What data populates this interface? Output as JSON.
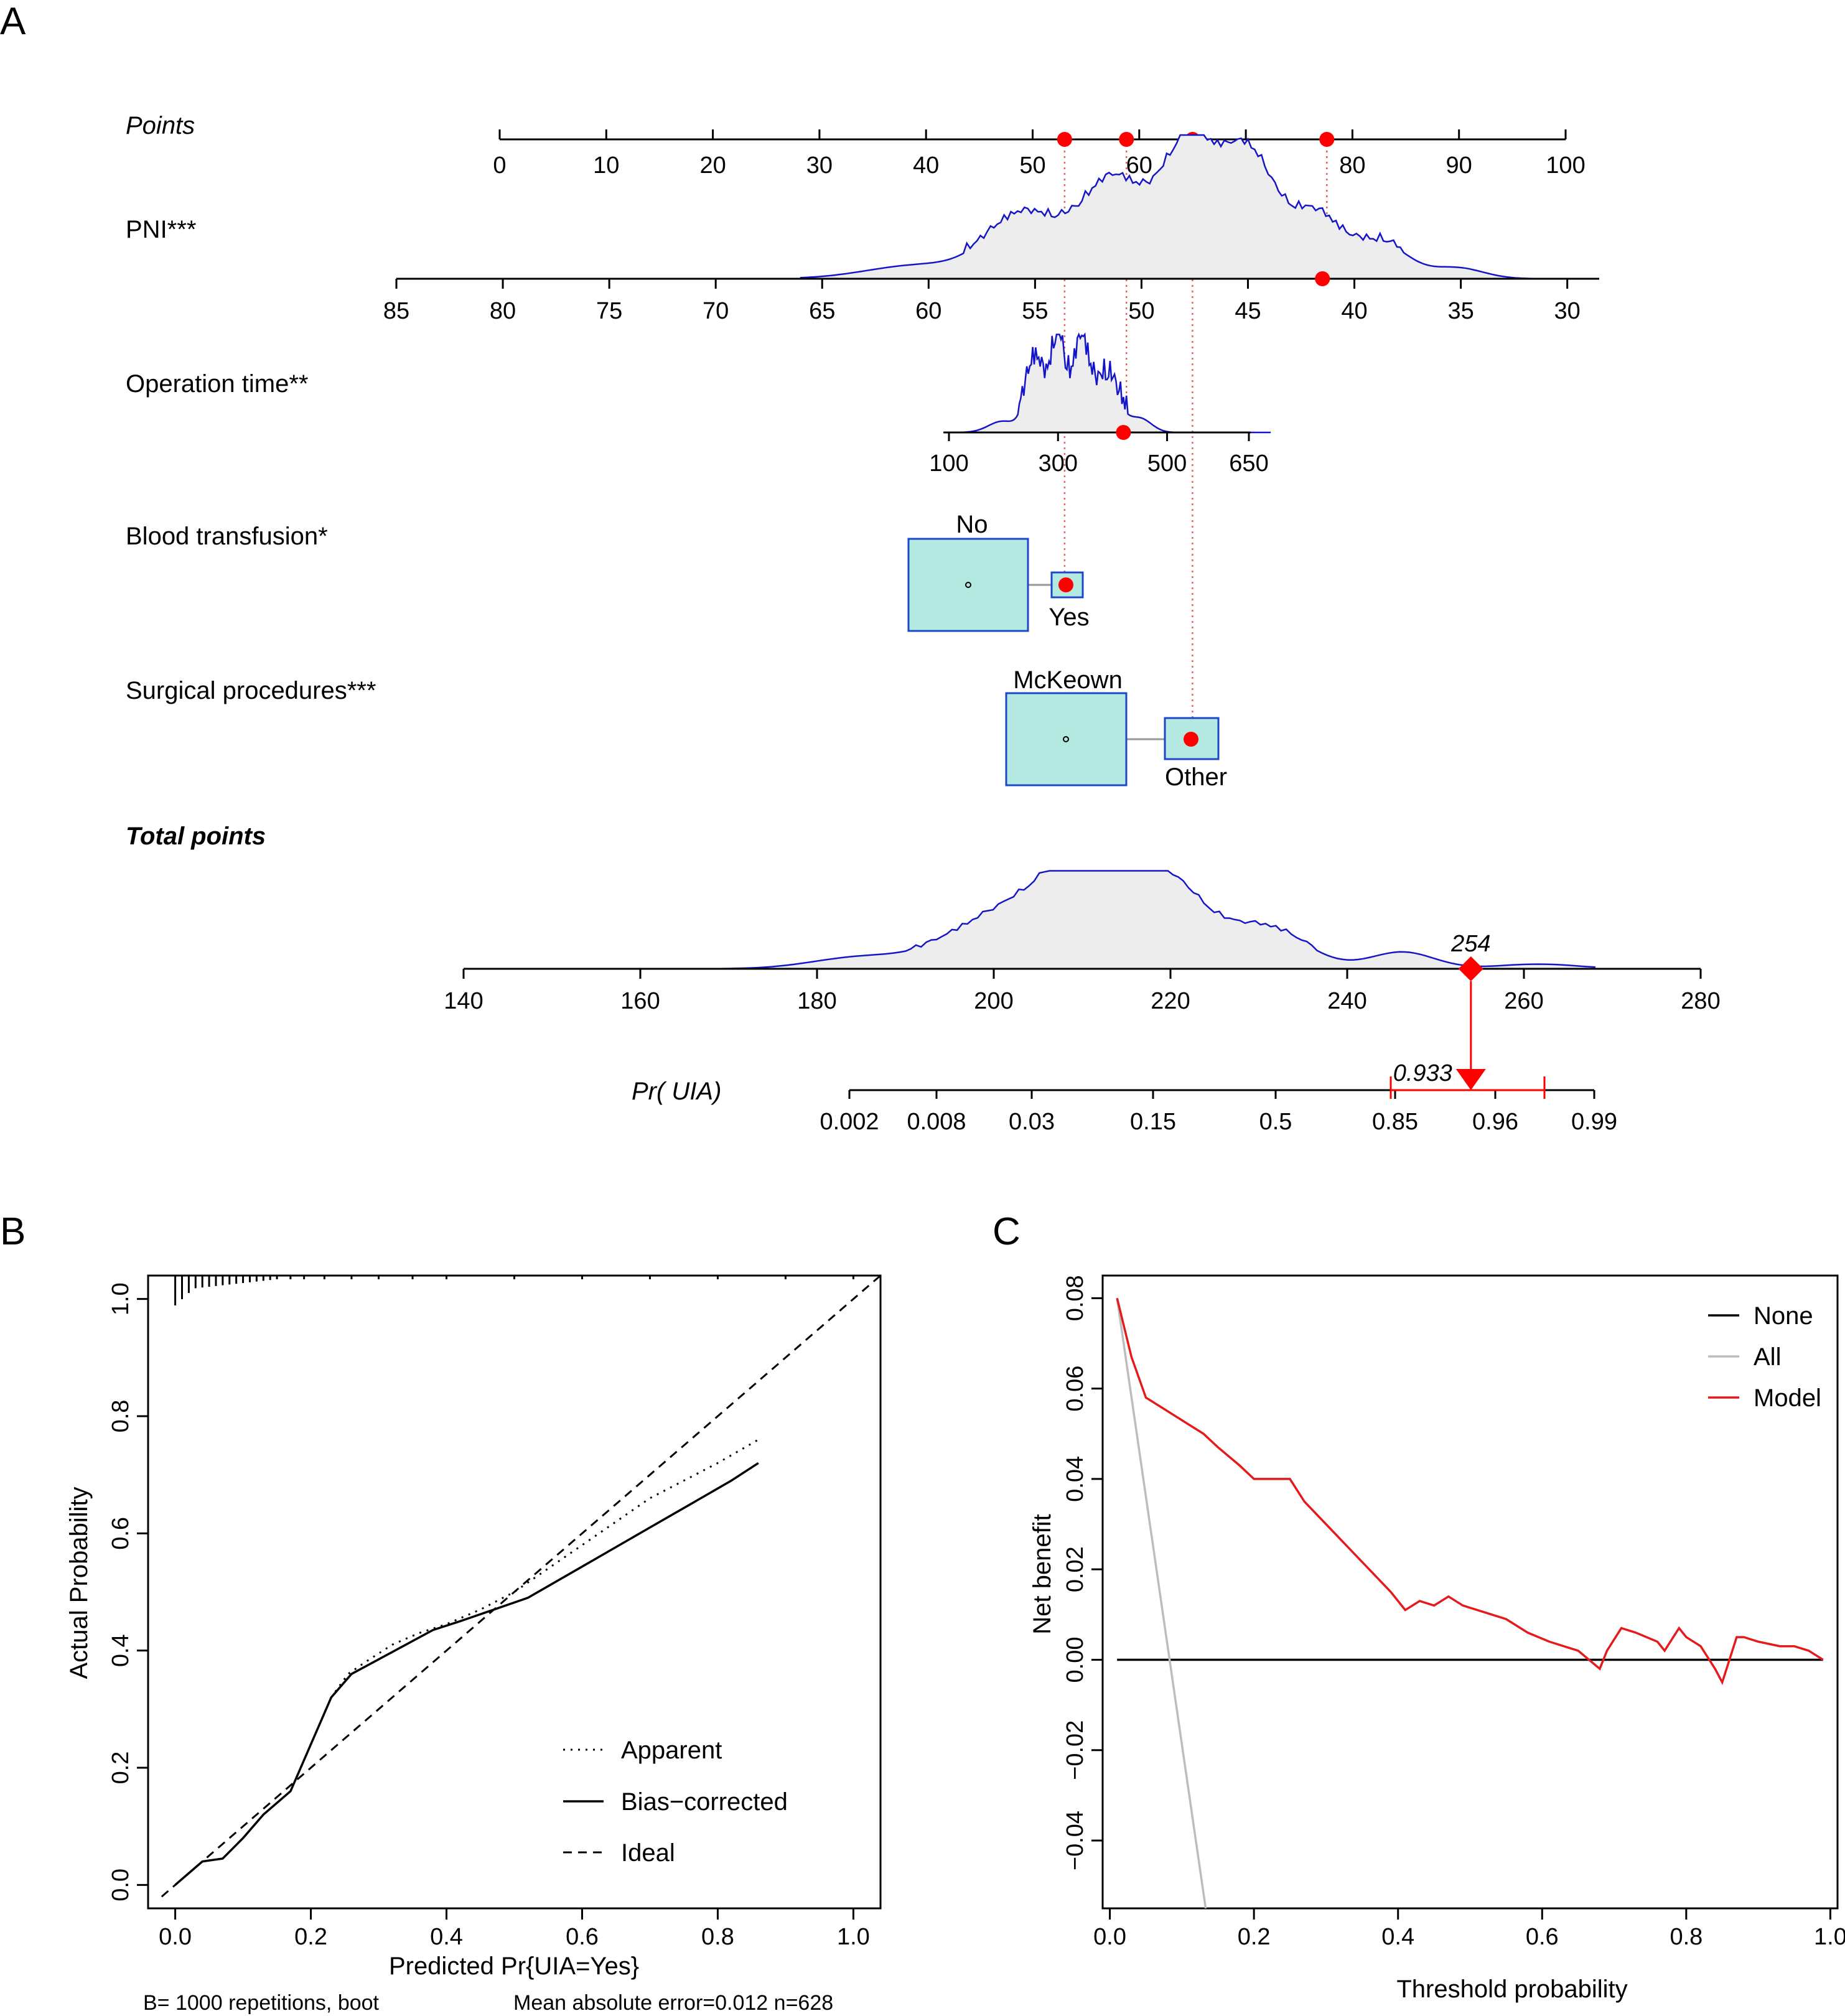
{
  "figure_labels": {
    "a": "A",
    "b": "B",
    "c": "C"
  },
  "colors": {
    "density_line": "#1414c8",
    "density_fill": "#ededed",
    "marker": "#ff0000",
    "box_fill": "#b3e9e1",
    "box_border": "#1c47c9",
    "all_line": "#bdbdbd",
    "model_line": "#e41a1c"
  },
  "chart_data": [
    {
      "type": "nomogram",
      "panel": "A",
      "scales": {
        "points": {
          "label": "Points",
          "ticks": [
            0,
            10,
            20,
            30,
            40,
            50,
            60,
            70,
            80,
            90,
            100
          ],
          "range": [
            0,
            100
          ],
          "markers": [
            53,
            58.8,
            65,
            77.6
          ]
        },
        "pni": {
          "label": "PNI***",
          "ticks": [
            85,
            80,
            75,
            70,
            65,
            60,
            55,
            50,
            45,
            40,
            35,
            30
          ],
          "range": [
            85,
            28.5
          ],
          "marker": 41.5
        },
        "op_time": {
          "label": "Operation time**",
          "ticks": [
            100,
            300,
            500,
            650
          ],
          "marker": 420
        },
        "blood": {
          "label": "Blood transfusion*",
          "levels": [
            "No",
            "Yes"
          ],
          "points": [
            44.5,
            53
          ],
          "marker": "Yes"
        },
        "surgery": {
          "label": "Surgical procedures***",
          "levels": [
            "McKeown",
            "Other"
          ],
          "points": [
            53,
            65
          ],
          "marker": "Other"
        },
        "total": {
          "label": "Total points",
          "ticks": [
            140,
            160,
            180,
            200,
            220,
            240,
            260,
            280
          ],
          "range": [
            140,
            280
          ],
          "value": 254,
          "value_label": "254"
        },
        "prob": {
          "label": "Pr( UIA)",
          "ticks": [
            "0.002",
            "0.008",
            "0.03",
            "0.15",
            "0.5",
            "0.85",
            "0.96",
            "0.99"
          ],
          "value": 0.933,
          "value_label": "0.933",
          "ci": [
            0.85,
            0.985
          ]
        }
      }
    },
    {
      "type": "line",
      "panel": "B",
      "title": "",
      "xlabel": "Predicted Pr{UIA=Yes}",
      "ylabel": "Actual Probability",
      "xlim": [
        -0.04,
        1.04
      ],
      "ylim": [
        -0.04,
        1.04
      ],
      "xticks": [
        "0.0",
        "0.2",
        "0.4",
        "0.6",
        "0.8",
        "1.0"
      ],
      "yticks": [
        "0.0",
        "0.2",
        "0.4",
        "0.6",
        "0.8",
        "1.0"
      ],
      "legend": [
        "Apparent",
        "Bias−corrected",
        "Ideal"
      ],
      "footer_left": "B= 1000 repetitions, boot",
      "footer_right": "Mean absolute error=0.012 n=628",
      "series": [
        {
          "name": "Apparent",
          "x": [
            0,
            0.02,
            0.04,
            0.07,
            0.1,
            0.13,
            0.17,
            0.2,
            0.23,
            0.255,
            0.28,
            0.32,
            0.36,
            0.4,
            0.45,
            0.5,
            0.55,
            0.6,
            0.65,
            0.7,
            0.75,
            0.8,
            0.86
          ],
          "y": [
            0,
            0.02,
            0.04,
            0.045,
            0.08,
            0.12,
            0.16,
            0.24,
            0.32,
            0.36,
            0.38,
            0.41,
            0.43,
            0.445,
            0.47,
            0.5,
            0.54,
            0.58,
            0.62,
            0.66,
            0.69,
            0.72,
            0.76
          ]
        },
        {
          "name": "Bias−corrected",
          "x": [
            0,
            0.02,
            0.04,
            0.07,
            0.1,
            0.13,
            0.17,
            0.2,
            0.23,
            0.26,
            0.3,
            0.34,
            0.38,
            0.42,
            0.47,
            0.52,
            0.58,
            0.64,
            0.7,
            0.76,
            0.82,
            0.86
          ],
          "y": [
            0,
            0.02,
            0.04,
            0.045,
            0.08,
            0.12,
            0.16,
            0.24,
            0.32,
            0.36,
            0.385,
            0.41,
            0.435,
            0.45,
            0.47,
            0.49,
            0.53,
            0.57,
            0.61,
            0.65,
            0.69,
            0.72
          ]
        },
        {
          "name": "Ideal",
          "x": [
            -0.02,
            1.04
          ],
          "y": [
            -0.02,
            1.04
          ]
        }
      ],
      "rug_x": [
        0.0,
        0.01,
        0.02,
        0.03,
        0.04,
        0.05,
        0.06,
        0.07,
        0.08,
        0.09,
        0.1,
        0.11,
        0.12,
        0.13,
        0.14,
        0.15,
        0.17,
        0.19,
        0.22,
        0.26,
        0.3,
        0.35,
        0.4,
        0.5,
        0.6,
        0.7,
        0.8,
        0.9,
        1.0
      ]
    },
    {
      "type": "line",
      "panel": "C",
      "title": "",
      "xlabel": "Threshold probability",
      "ylabel": "Net benefit",
      "xlim": [
        -0.01,
        1.01
      ],
      "ylim": [
        -0.055,
        0.085
      ],
      "xticks": [
        "0.0",
        "0.2",
        "0.4",
        "0.6",
        "0.8",
        "1.0"
      ],
      "yticks": [
        "−0.04",
        "−0.02",
        "0.00",
        "0.02",
        "0.04",
        "0.06",
        "0.08"
      ],
      "legend": [
        "None",
        "All",
        "Model"
      ],
      "series": [
        {
          "name": "None",
          "x": [
            0.01,
            0.99
          ],
          "y": [
            0,
            0
          ]
        },
        {
          "name": "All",
          "x": [
            0.01,
            0.133
          ],
          "y": [
            0.08,
            -0.055
          ]
        },
        {
          "name": "Model",
          "x": [
            0.01,
            0.03,
            0.05,
            0.08,
            0.1,
            0.13,
            0.15,
            0.18,
            0.2,
            0.22,
            0.25,
            0.27,
            0.3,
            0.33,
            0.36,
            0.39,
            0.4,
            0.41,
            0.43,
            0.45,
            0.47,
            0.49,
            0.51,
            0.53,
            0.55,
            0.58,
            0.61,
            0.65,
            0.68,
            0.69,
            0.71,
            0.73,
            0.76,
            0.77,
            0.79,
            0.8,
            0.82,
            0.84,
            0.85,
            0.87,
            0.88,
            0.9,
            0.93,
            0.95,
            0.97,
            0.99
          ],
          "y": [
            0.08,
            0.067,
            0.058,
            0.055,
            0.053,
            0.05,
            0.047,
            0.043,
            0.04,
            0.04,
            0.04,
            0.035,
            0.03,
            0.025,
            0.02,
            0.015,
            0.013,
            0.011,
            0.013,
            0.012,
            0.014,
            0.012,
            0.011,
            0.01,
            0.009,
            0.006,
            0.004,
            0.002,
            -0.002,
            0.002,
            0.007,
            0.006,
            0.004,
            0.002,
            0.007,
            0.005,
            0.003,
            -0.002,
            -0.005,
            0.005,
            0.005,
            0.004,
            0.003,
            0.003,
            0.002,
            0
          ]
        }
      ]
    }
  ]
}
